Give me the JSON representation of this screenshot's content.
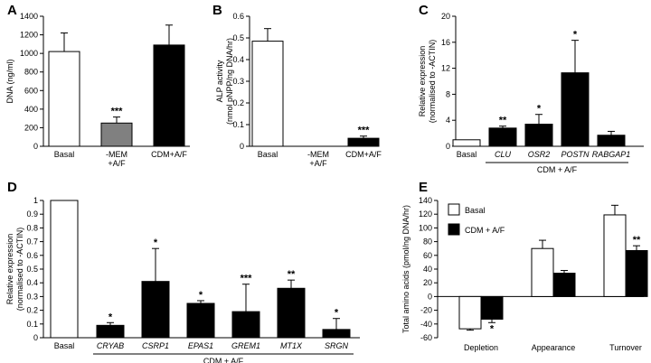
{
  "chart_data": [
    {
      "panel": "A",
      "type": "bar",
      "ylabel": "DNA (ng/ml)",
      "ylim": [
        0,
        1400
      ],
      "yticks": [
        0,
        200,
        400,
        600,
        800,
        1000,
        1200,
        1400
      ],
      "categories": [
        [
          "Basal"
        ],
        [
          "-MEM",
          "+A/F"
        ],
        [
          "CDM+A/F"
        ]
      ],
      "values": [
        1020,
        250,
        1090
      ],
      "errors": [
        200,
        65,
        215
      ],
      "fills": [
        "#ffffff",
        "#808080",
        "#000000"
      ],
      "significance": [
        "",
        "***",
        ""
      ],
      "group_label": ""
    },
    {
      "panel": "B",
      "type": "bar",
      "ylabel": [
        "ALP activity",
        "(nmol pNPP/ng DNA/hr)"
      ],
      "ylim": [
        0,
        0.6
      ],
      "yticks": [
        0,
        0.1,
        0.2,
        0.3,
        0.4,
        0.5,
        0.6
      ],
      "categories": [
        [
          "Basal"
        ],
        [
          "-MEM",
          "+A/F"
        ],
        [
          "CDM+A/F"
        ]
      ],
      "values": [
        0.485,
        0,
        0.037
      ],
      "errors": [
        0.058,
        0,
        0.01
      ],
      "fills": [
        "#ffffff",
        "#808080",
        "#000000"
      ],
      "significance": [
        "",
        "",
        "***"
      ],
      "group_label": ""
    },
    {
      "panel": "C",
      "type": "bar",
      "ylabel": [
        "Relative expression",
        "(normalised to -ACTIN)"
      ],
      "ylim": [
        0,
        20
      ],
      "yticks": [
        0,
        4,
        8,
        12,
        16,
        20
      ],
      "categories": [
        [
          "Basal"
        ],
        [
          "CLU"
        ],
        [
          "OSR2"
        ],
        [
          "POSTN"
        ],
        [
          "RABGAP1"
        ]
      ],
      "italic_categories": [
        false,
        true,
        true,
        true,
        true
      ],
      "values": [
        1.0,
        2.8,
        3.4,
        11.3,
        1.7
      ],
      "errors": [
        0,
        0.3,
        1.5,
        5.0,
        0.6
      ],
      "fills": [
        "#ffffff",
        "#000000",
        "#000000",
        "#000000",
        "#000000"
      ],
      "significance": [
        "",
        "**",
        "*",
        "*",
        ""
      ],
      "group_label": "CDM + A/F"
    },
    {
      "panel": "D",
      "type": "bar",
      "ylabel": [
        "Relative expression",
        "(normalised to -ACTIN)"
      ],
      "ylim": [
        0,
        1.0
      ],
      "yticks": [
        0,
        0.1,
        0.2,
        0.3,
        0.4,
        0.5,
        0.6,
        0.7,
        0.8,
        0.9,
        1.0
      ],
      "categories": [
        [
          "Basal"
        ],
        [
          "CRYAB"
        ],
        [
          "CSRP1"
        ],
        [
          "EPAS1"
        ],
        [
          "GREM1"
        ],
        [
          "MT1X"
        ],
        [
          "SRGN"
        ]
      ],
      "italic_categories": [
        false,
        true,
        true,
        true,
        true,
        true,
        true
      ],
      "values": [
        1.0,
        0.09,
        0.41,
        0.25,
        0.19,
        0.36,
        0.06
      ],
      "errors": [
        0,
        0.02,
        0.24,
        0.02,
        0.2,
        0.06,
        0.08
      ],
      "fills": [
        "#ffffff",
        "#000000",
        "#000000",
        "#000000",
        "#000000",
        "#000000",
        "#000000"
      ],
      "significance": [
        "",
        "*",
        "*",
        "*",
        "***",
        "**",
        "*"
      ],
      "group_label": "CDM + A/F"
    },
    {
      "panel": "E",
      "type": "bar",
      "ylabel": "Total amino acids (pmol/ng DNA/hr)",
      "ylim": [
        -60,
        140
      ],
      "yticks": [
        -60,
        -40,
        -20,
        0,
        20,
        40,
        60,
        80,
        100,
        120,
        140
      ],
      "categories": [
        "Depletion",
        "Appearance",
        "Turnover"
      ],
      "series": [
        {
          "name": "Basal",
          "fill": "#ffffff",
          "values": [
            -47,
            70,
            119
          ],
          "errors": [
            2,
            12,
            14
          ],
          "significance": [
            "",
            "",
            ""
          ]
        },
        {
          "name": "CDM + A/F",
          "fill": "#000000",
          "values": [
            -33,
            34,
            67
          ],
          "errors": [
            5,
            4,
            7
          ],
          "significance": [
            "*",
            "",
            "**"
          ]
        }
      ],
      "legend": "top-left"
    }
  ]
}
